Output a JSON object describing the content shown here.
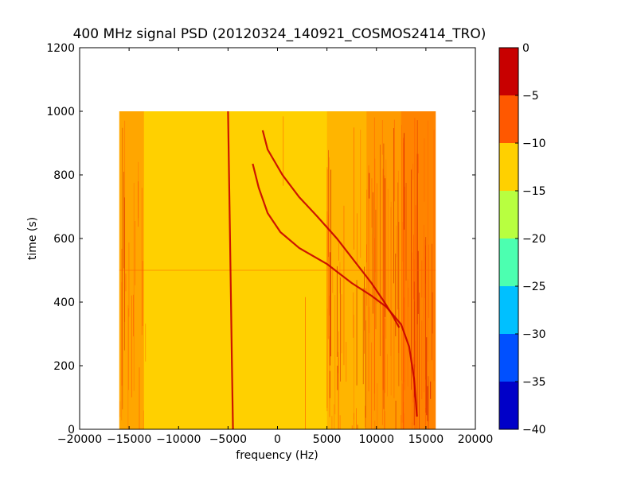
{
  "chart_data": {
    "type": "heatmap",
    "title": "400 MHz signal PSD (20120324_140921_COSMOS2414_TRO)",
    "xlabel": "frequency (Hz)",
    "ylabel": "time (s)",
    "xlim": [
      -20000,
      20000
    ],
    "ylim": [
      0,
      1200
    ],
    "x_ticks": [
      -20000,
      -15000,
      -10000,
      -5000,
      0,
      5000,
      10000,
      15000,
      20000
    ],
    "x_tick_labels": [
      "−20000",
      "−15000",
      "−10000",
      "−5000",
      "0",
      "5000",
      "10000",
      "15000",
      "20000"
    ],
    "y_ticks": [
      0,
      200,
      400,
      600,
      800,
      1000,
      1200
    ],
    "y_tick_labels": [
      "0",
      "200",
      "400",
      "600",
      "800",
      "1000",
      "1200"
    ],
    "data_extent": {
      "x": [
        -16000,
        16000
      ],
      "y": [
        0,
        1000
      ]
    },
    "background_level_range_db": [
      -15,
      -5
    ],
    "colorbar": {
      "levels": [
        -40,
        -35,
        -30,
        -25,
        -20,
        -15,
        -10,
        -5,
        0
      ],
      "labels": [
        "−40",
        "−35",
        "−30",
        "−25",
        "−20",
        "−15",
        "−10",
        "−5",
        "0"
      ],
      "colors": [
        "#0000c8",
        "#0050ff",
        "#00c0ff",
        "#4cffb0",
        "#b8ff40",
        "#ffd000",
        "#ff5800",
        "#c80000"
      ]
    },
    "traces": [
      {
        "level_db": -5,
        "points": [
          [
            -2500,
            835
          ],
          [
            -1900,
            760
          ],
          [
            -1000,
            680
          ],
          [
            300,
            620
          ],
          [
            2200,
            570
          ],
          [
            5000,
            520
          ],
          [
            7500,
            460
          ],
          [
            9500,
            420
          ],
          [
            11000,
            385
          ],
          [
            12500,
            330
          ],
          [
            13300,
            260
          ],
          [
            13800,
            160
          ],
          [
            14100,
            40
          ]
        ]
      },
      {
        "level_db": -5,
        "points": [
          [
            -1500,
            940
          ],
          [
            -1000,
            880
          ],
          [
            500,
            800
          ],
          [
            2200,
            730
          ],
          [
            4000,
            670
          ],
          [
            6000,
            600
          ],
          [
            8000,
            520
          ],
          [
            9500,
            460
          ],
          [
            10800,
            400
          ],
          [
            11600,
            360
          ],
          [
            12300,
            320
          ]
        ]
      },
      {
        "level_db": -5,
        "points": [
          [
            -5000,
            1000
          ],
          [
            -4800,
            600
          ],
          [
            -4600,
            200
          ],
          [
            -4500,
            0
          ]
        ]
      }
    ]
  }
}
